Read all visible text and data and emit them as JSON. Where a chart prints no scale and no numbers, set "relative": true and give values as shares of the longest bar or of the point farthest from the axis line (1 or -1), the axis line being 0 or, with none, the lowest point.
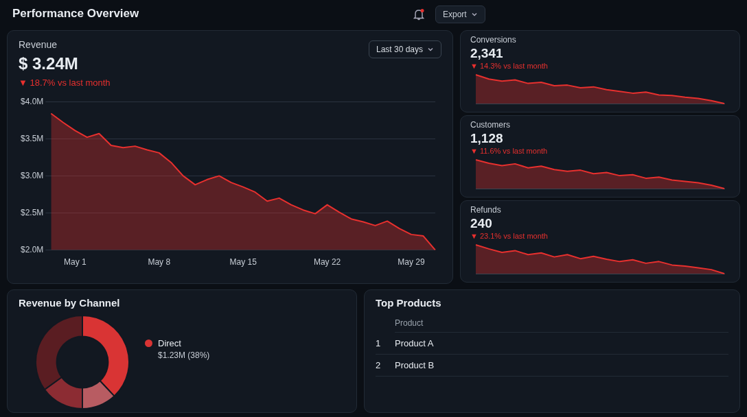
{
  "chart_data": [
    {
      "type": "area",
      "title": "Revenue",
      "subtitle": "$ 3.24M",
      "annotations": [
        "▼ 18.7% vs last month",
        "Last 30 days",
        "Performance Overview",
        "Export"
      ],
      "categories": [
        null,
        null,
        "May 1",
        null,
        null,
        null,
        null,
        null,
        null,
        "May 8",
        null,
        null,
        null,
        null,
        null,
        null,
        "May 15",
        null,
        null,
        null,
        null,
        null,
        null,
        "May 22",
        null,
        null,
        null,
        null,
        null,
        null,
        "May 29",
        null,
        null
      ],
      "series": [
        {
          "color": "#e8302e",
          "values": [
            3.84,
            3.72,
            3.61,
            3.52,
            3.57,
            3.41,
            3.38,
            3.4,
            3.35,
            3.31,
            3.18,
            3.0,
            2.88,
            2.95,
            3.0,
            2.91,
            2.85,
            2.78,
            2.66,
            2.7,
            2.61,
            2.54,
            2.49,
            2.61,
            2.51,
            2.42,
            2.38,
            2.33,
            2.39,
            2.29,
            2.21,
            2.19,
            2.0
          ]
        }
      ],
      "ylim": [
        2.0,
        4.0
      ],
      "yticks": [
        {
          "value": 2.0,
          "label": "$2.0M"
        },
        {
          "value": 2.5,
          "label": "$2.5M"
        },
        {
          "value": 3.0,
          "label": "$3.0M"
        },
        {
          "value": 3.5,
          "label": "$3.5M"
        },
        {
          "value": 4.0,
          "label": "$4.0M"
        }
      ],
      "grid": "y"
    },
    {
      "type": "area",
      "title": "Conversions",
      "subtitle": "2,341",
      "annotations": [
        "▼ 14.3% vs last month"
      ],
      "relative": true,
      "categories": [
        null,
        null,
        null,
        null,
        null,
        null,
        null,
        null,
        null,
        null,
        null,
        null,
        null,
        null,
        null,
        null,
        null,
        null,
        null,
        null
      ],
      "series": [
        {
          "color": "#e8302e",
          "values": [
            1,
            0.85,
            0.78,
            0.82,
            0.7,
            0.74,
            0.62,
            0.64,
            0.55,
            0.58,
            0.48,
            0.42,
            0.36,
            0.4,
            0.3,
            0.28,
            0.22,
            0.18,
            0.1,
            0
          ]
        }
      ]
    },
    {
      "type": "area",
      "title": "Customers",
      "subtitle": "1,128",
      "annotations": [
        "▼ 11.6% vs last month"
      ],
      "relative": true,
      "categories": [
        null,
        null,
        null,
        null,
        null,
        null,
        null,
        null,
        null,
        null,
        null,
        null,
        null,
        null,
        null,
        null,
        null,
        null,
        null,
        null
      ],
      "series": [
        {
          "color": "#e8302e",
          "values": [
            1,
            0.88,
            0.8,
            0.86,
            0.72,
            0.78,
            0.66,
            0.6,
            0.64,
            0.52,
            0.56,
            0.45,
            0.48,
            0.36,
            0.4,
            0.3,
            0.25,
            0.2,
            0.12,
            0
          ]
        }
      ]
    },
    {
      "type": "area",
      "title": "Refunds",
      "subtitle": "240",
      "annotations": [
        "▼ 23.1% vs last month"
      ],
      "relative": true,
      "categories": [
        null,
        null,
        null,
        null,
        null,
        null,
        null,
        null,
        null,
        null,
        null,
        null,
        null,
        null,
        null,
        null,
        null,
        null,
        null,
        null
      ],
      "series": [
        {
          "color": "#e8302e",
          "values": [
            1,
            0.86,
            0.74,
            0.8,
            0.66,
            0.72,
            0.58,
            0.66,
            0.52,
            0.6,
            0.5,
            0.42,
            0.48,
            0.36,
            0.42,
            0.3,
            0.26,
            0.2,
            0.14,
            0
          ]
        }
      ]
    },
    {
      "type": "donut",
      "title": "Revenue by Channel",
      "categories": [
        "Direct",
        null,
        null,
        null
      ],
      "values": [
        38,
        12,
        15,
        35
      ],
      "colors": [
        "#d93434",
        "#b85c62",
        "#8c2c33",
        "#5a1d22"
      ],
      "value_labels": [
        "$1.23M (38%)",
        null,
        null,
        null
      ],
      "legend": "right"
    },
    {
      "type": "other",
      "title": "Top Products",
      "annotations": [
        "Product",
        "1",
        "Product A",
        "2",
        "Product B"
      ]
    }
  ]
}
